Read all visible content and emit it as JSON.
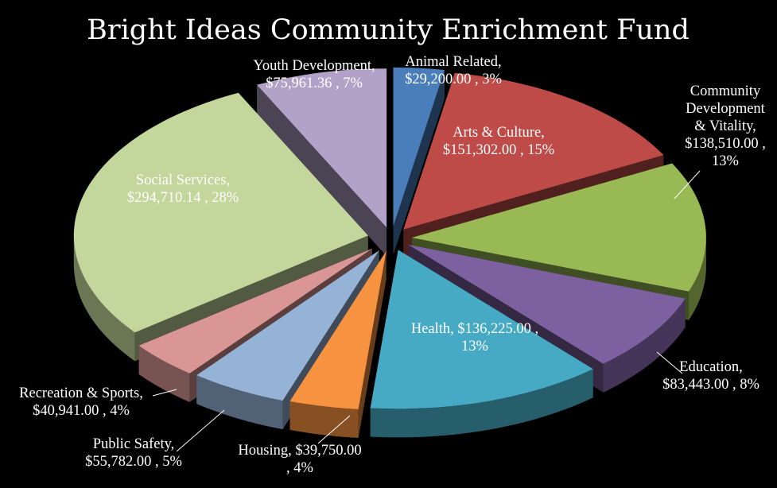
{
  "chart_data": {
    "type": "pie",
    "title": "Bright Ideas Community Enrichment Fund",
    "style": "3d-exploded",
    "slices": [
      {
        "category": "Animal Related",
        "value": 29200.0,
        "percent": 3,
        "color": "#4a7ebb",
        "label_lines": [
          "Animal Related,",
          "$29,200.00 , 3%"
        ]
      },
      {
        "category": "Arts & Culture",
        "value": 151302.0,
        "percent": 15,
        "color": "#be4b48",
        "label_lines": [
          "Arts & Culture,",
          "$151,302.00 , 15%"
        ]
      },
      {
        "category": "Community Development & Vitality",
        "value": 138510.0,
        "percent": 13,
        "color": "#98b954",
        "label_lines": [
          "Community",
          "Development",
          "& Vitality,",
          "$138,510.00 ,",
          "13%"
        ]
      },
      {
        "category": "Education",
        "value": 83443.0,
        "percent": 8,
        "color": "#7d60a0",
        "label_lines": [
          "Education,",
          "$83,443.00 , 8%"
        ]
      },
      {
        "category": "Health",
        "value": 136225.0,
        "percent": 13,
        "color": "#46aac5",
        "label_lines": [
          "Health, $136,225.00 ,",
          "13%"
        ]
      },
      {
        "category": "Housing",
        "value": 39750.0,
        "percent": 4,
        "color": "#f69240",
        "label_lines": [
          "Housing, $39,750.00",
          ", 4%"
        ]
      },
      {
        "category": "Public Safety",
        "value": 55782.0,
        "percent": 5,
        "color": "#95b3d7",
        "label_lines": [
          "Public Safety,",
          "$55,782.00 , 5%"
        ]
      },
      {
        "category": "Recreation & Sports",
        "value": 40941.0,
        "percent": 4,
        "color": "#d99694",
        "label_lines": [
          "Recreation & Sports,",
          "$40,941.00 , 4%"
        ]
      },
      {
        "category": "Social Services",
        "value": 294710.14,
        "percent": 28,
        "color": "#c3d69b",
        "label_lines": [
          "Social Services,",
          "$294,710.14 , 28%"
        ]
      },
      {
        "category": "Youth Development",
        "value": 75961.36,
        "percent": 7,
        "color": "#b3a2c7",
        "label_lines": [
          "Youth Development,",
          "$75,961.36 , 7%"
        ]
      }
    ],
    "legend": "none"
  }
}
